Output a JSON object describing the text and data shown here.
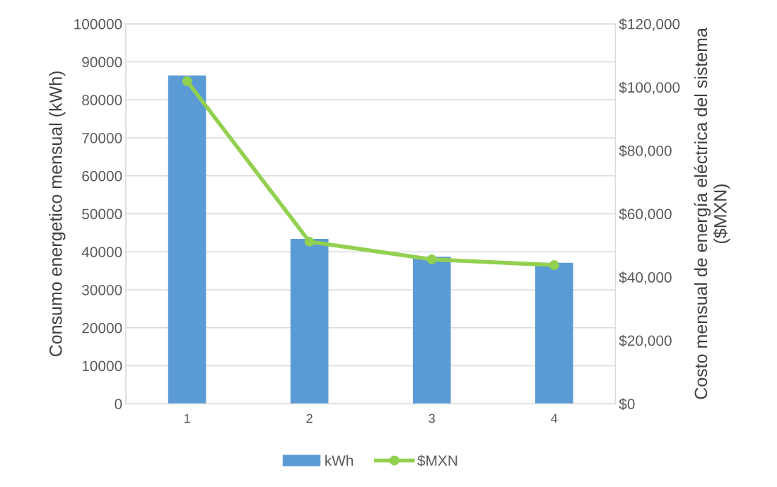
{
  "chart_data": {
    "type": "bar",
    "categories": [
      "1",
      "2",
      "3",
      "4"
    ],
    "ylabel": "Consumo energetico mensual (kWh)",
    "y2label": "Costo mensual de energía eléctrica del sistema ($MXN)",
    "series": [
      {
        "name": "kWh",
        "color": "#5b9bd5",
        "values": [
          86400,
          43400,
          38700,
          37100
        ]
      },
      {
        "name": "$MXN",
        "type": "line",
        "axis": "y2",
        "color": "#92d050",
        "values": [
          101900,
          51200,
          45600,
          43800
        ]
      }
    ],
    "ylim": [
      0,
      100000
    ],
    "yticks": [
      0,
      10000,
      20000,
      30000,
      40000,
      50000,
      60000,
      70000,
      80000,
      90000,
      100000
    ],
    "y2lim": [
      0,
      120000
    ],
    "y2ticks": [
      {
        "value": 0,
        "label": "$0"
      },
      {
        "value": 20000,
        "label": "$20,000"
      },
      {
        "value": 40000,
        "label": "$40,000"
      },
      {
        "value": 60000,
        "label": "$60,000"
      },
      {
        "value": 80000,
        "label": "$80,000"
      },
      {
        "value": 100000,
        "label": "$100,000"
      },
      {
        "value": 120000,
        "label": "$120,000"
      }
    ],
    "grid": "y",
    "legend": "bottom",
    "marker": "circle",
    "line_style": "solid"
  }
}
